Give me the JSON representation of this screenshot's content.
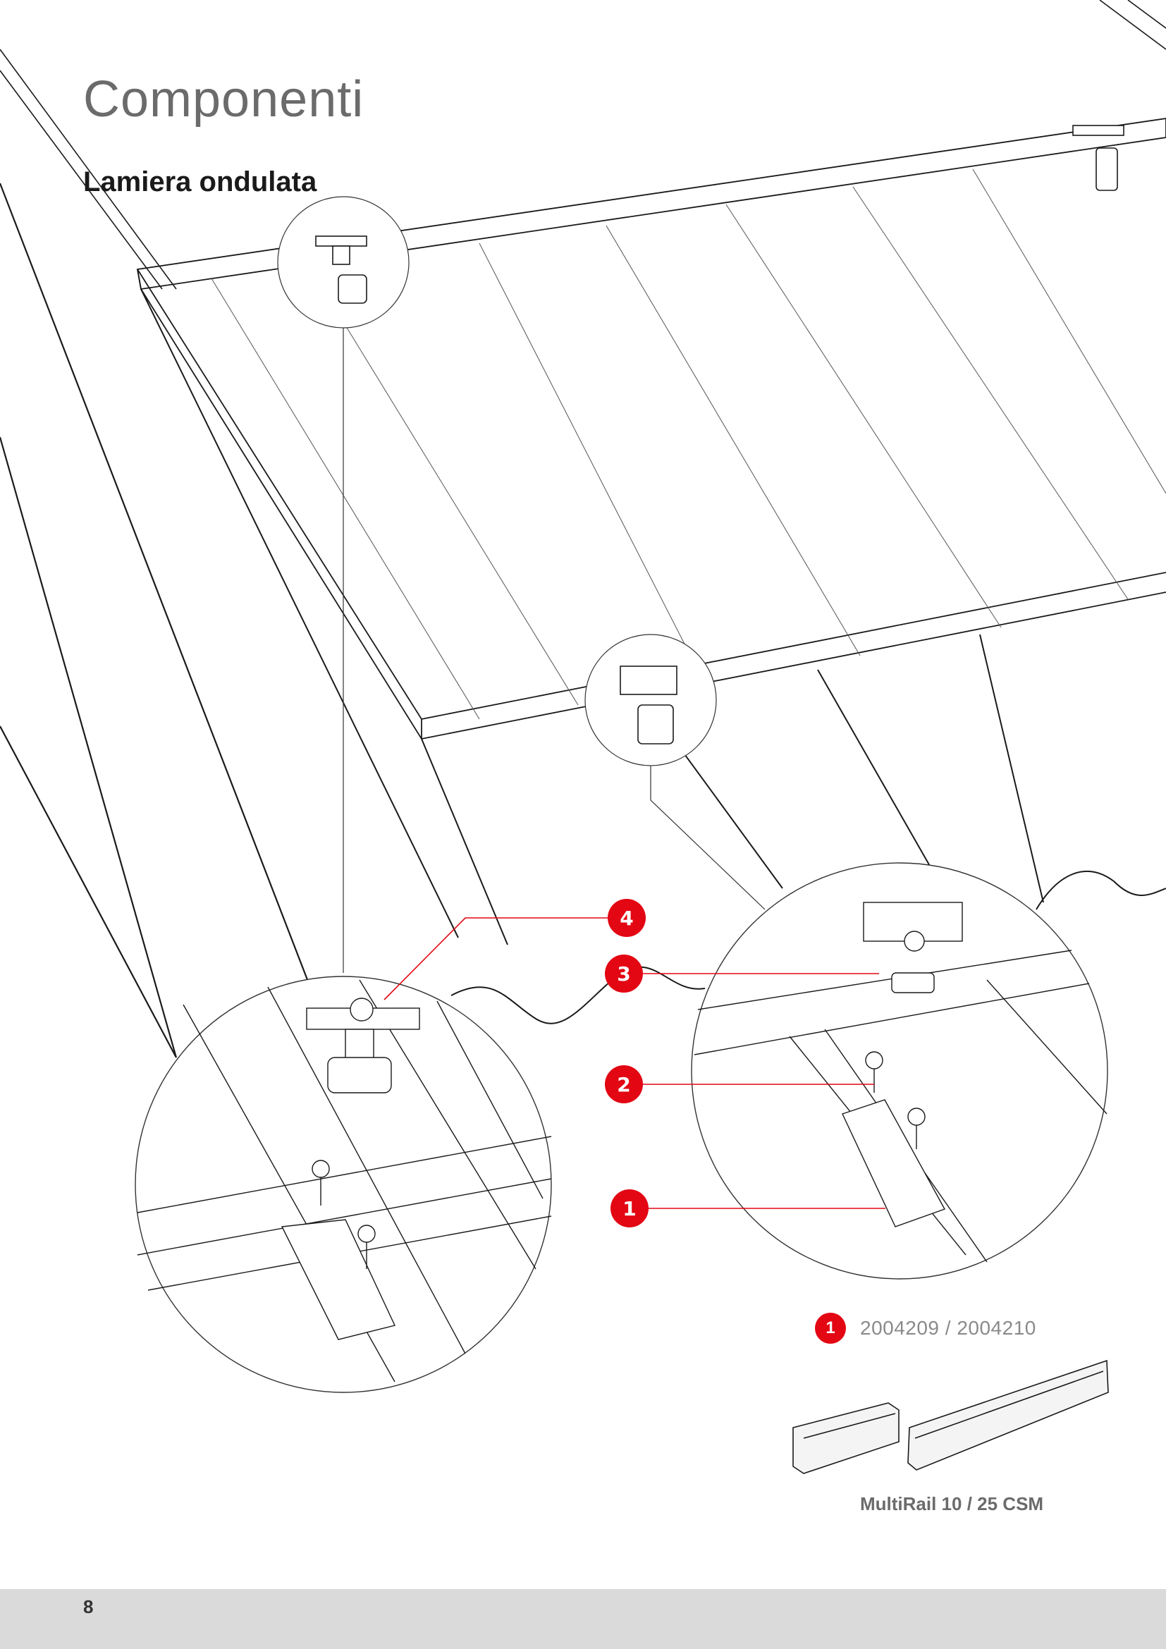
{
  "page": {
    "title": "Componenti",
    "subtitle": "Lamiera ondulata",
    "page_number": "8"
  },
  "callouts": [
    {
      "number": "4"
    },
    {
      "number": "3"
    },
    {
      "number": "2"
    },
    {
      "number": "1"
    }
  ],
  "part": {
    "number": "1",
    "codes": "2004209 / 2004210",
    "name": "MultiRail 10 / 25 CSM"
  },
  "colors": {
    "accent": "#e30613",
    "line": "#1a1a1a",
    "footer": "#dadada"
  }
}
